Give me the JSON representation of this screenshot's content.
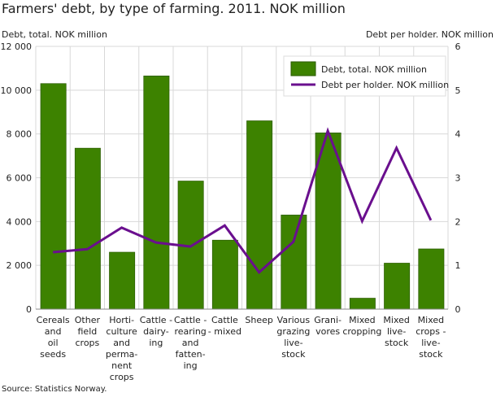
{
  "chart_data": {
    "type": "bar+line",
    "title": "Farmers' debt, by type of farming. 2011. NOK million",
    "ylabel_left": "Debt, total. NOK million",
    "ylabel_right": "Debt per holder. NOK million",
    "source": "Source: Statistics Norway.",
    "ylim_left": [
      0,
      12000
    ],
    "ylim_right": [
      0,
      6
    ],
    "yticks_left": [
      "0",
      "2 000",
      "4 000",
      "6 000",
      "8 000",
      "10 000",
      "12 000"
    ],
    "yticks_right": [
      "0",
      "1",
      "2",
      "3",
      "4",
      "5",
      "6"
    ],
    "grid": true,
    "legend_position": "top-right",
    "categories": [
      [
        "Cereals",
        "and",
        "oil",
        "seeds"
      ],
      [
        "Other",
        "field",
        "crops"
      ],
      [
        "Horti-",
        "culture",
        "and",
        "perma-",
        "nent",
        "crops"
      ],
      [
        "Cattle -",
        "dairy-",
        "ing"
      ],
      [
        "Cattle -",
        "rearing",
        "and",
        "fatten-",
        "ing"
      ],
      [
        "Cattle",
        "- mixed"
      ],
      [
        "Sheep"
      ],
      [
        "Various",
        "grazing",
        "live-",
        "stock"
      ],
      [
        "Grani-",
        "vores"
      ],
      [
        "Mixed",
        "cropping"
      ],
      [
        "Mixed",
        "live-",
        "stock"
      ],
      [
        "Mixed",
        "crops -",
        "live-",
        "stock"
      ]
    ],
    "series": [
      {
        "name": "Debt, total. NOK million",
        "type": "bar",
        "axis": "left",
        "color": "#3d8200",
        "values": [
          10300,
          7350,
          2600,
          10650,
          5850,
          3150,
          8600,
          4300,
          8050,
          500,
          2100,
          2750
        ]
      },
      {
        "name": "Debt per holder. NOK million",
        "type": "line",
        "axis": "right",
        "color": "#6a0f8e",
        "values": [
          1.3,
          1.37,
          1.86,
          1.52,
          1.43,
          1.91,
          0.84,
          1.54,
          4.07,
          2.01,
          3.68,
          2.03
        ]
      }
    ]
  }
}
